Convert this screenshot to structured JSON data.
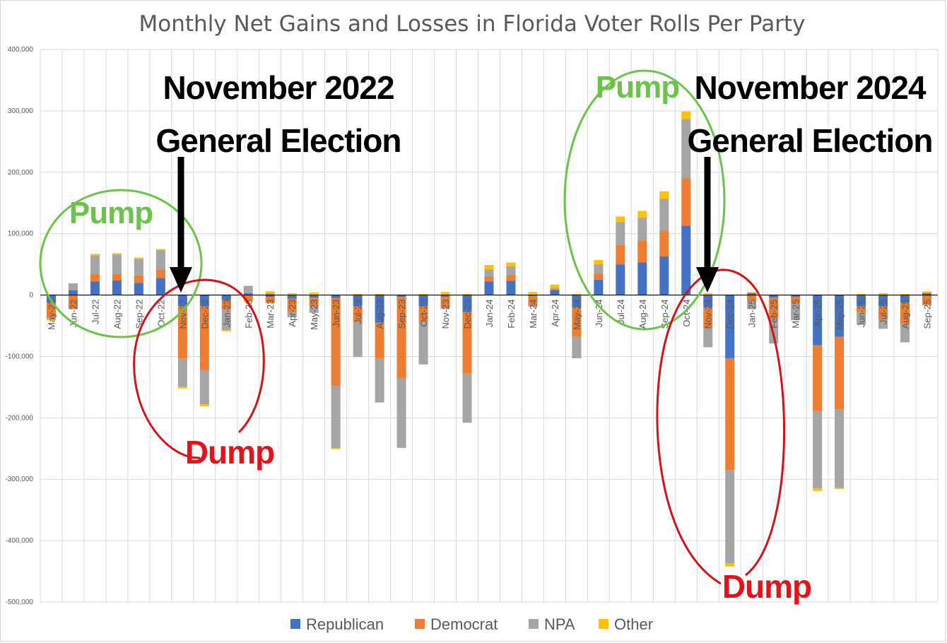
{
  "chart_data": {
    "type": "bar",
    "stacked": true,
    "title": "Monthly Net Gains and Losses in Florida Voter Rolls Per Party",
    "xlabel": "",
    "ylabel": "",
    "ylim": [
      -500000,
      400000
    ],
    "yticks": [
      400000,
      300000,
      200000,
      100000,
      0,
      -100000,
      -200000,
      -300000,
      -400000,
      -500000
    ],
    "ytick_labels": [
      "400,000",
      "300,000",
      "200,000",
      "100,000",
      "0",
      "-100,000",
      "-200,000",
      "-300,000",
      "-400,000",
      "-500,000"
    ],
    "grid": true,
    "legend_position": "bottom",
    "categories": [
      "May-22",
      "Jun-22",
      "Jul-22",
      "Aug-22",
      "Sep-22",
      "Oct-22",
      "Nov-22",
      "Dec-22",
      "Jan-23",
      "Feb-23",
      "Mar-23",
      "Apr-23",
      "May-23",
      "Jun-23",
      "Jul-23",
      "Aug-23",
      "Sep-23",
      "Oct-23",
      "Nov-23",
      "Dec-23",
      "Jan-24",
      "Feb-24",
      "Mar-24",
      "Apr-24",
      "May-24",
      "Jun-24",
      "Jul-24",
      "Aug-24",
      "Sep-24",
      "Oct-24",
      "Nov-24",
      "Dec-24",
      "Jan-25",
      "Feb-25",
      "Mar-25",
      "Apr-25",
      "May-25",
      "Jun-25",
      "Jul-25",
      "Aug-25",
      "Sep-25"
    ],
    "series": [
      {
        "name": "Republican",
        "color": "#4472c4",
        "values": [
          -12000,
          8000,
          22000,
          24000,
          20000,
          28000,
          -18000,
          -18000,
          -8000,
          3000,
          -3000,
          -6000,
          -4000,
          -5000,
          -18000,
          -45000,
          -3000,
          -18000,
          -3000,
          -28000,
          22000,
          23000,
          -2000,
          8000,
          -20000,
          25000,
          50000,
          53000,
          63000,
          113000,
          -20000,
          -103000,
          3000,
          -4000,
          -3000,
          -82000,
          -68000,
          -18000,
          -18000,
          -12000,
          3000
        ]
      },
      {
        "name": "Democrat",
        "color": "#ed7d31",
        "values": [
          -25000,
          -23000,
          12000,
          10000,
          12000,
          13000,
          -85000,
          -105000,
          -16000,
          -8000,
          -10000,
          -22000,
          -15000,
          -143000,
          -25000,
          -58000,
          -133000,
          -25000,
          -18000,
          -100000,
          8000,
          10000,
          -15000,
          2000,
          -48000,
          10000,
          32000,
          36000,
          42000,
          77000,
          -33000,
          -182000,
          -10000,
          -35000,
          -10000,
          -107000,
          -118000,
          -10000,
          -22000,
          -35000,
          -15000
        ]
      },
      {
        "name": "NPA",
        "color": "#a5a5a5",
        "values": [
          -2000,
          11000,
          30000,
          32000,
          27000,
          32000,
          -46000,
          -55000,
          -33000,
          12000,
          3000,
          -8000,
          -10000,
          -101000,
          -58000,
          -72000,
          -113000,
          -70000,
          -2000,
          -80000,
          12000,
          14000,
          -2000,
          2000,
          -35000,
          15000,
          37000,
          37000,
          52000,
          97000,
          -32000,
          -152000,
          -13000,
          -40000,
          -28000,
          -126000,
          -128000,
          -20000,
          -15000,
          -30000,
          -2000
        ]
      },
      {
        "name": "Other",
        "color": "#ffc000",
        "values": [
          -2000,
          0,
          3000,
          2000,
          2000,
          2000,
          -3000,
          -3000,
          -2000,
          -3000,
          3000,
          3000,
          4000,
          -2000,
          2000,
          2000,
          0,
          2000,
          5000,
          2000,
          7000,
          6000,
          5000,
          5000,
          2000,
          7000,
          9000,
          11000,
          12000,
          12000,
          3000,
          -5000,
          2000,
          0,
          0,
          -4000,
          -2000,
          2000,
          3000,
          2000,
          3000
        ]
      }
    ],
    "annotations": [
      {
        "text": "November 2022",
        "color": "#000000"
      },
      {
        "text": "General Election",
        "color": "#000000"
      },
      {
        "text": "November 2024",
        "color": "#000000"
      },
      {
        "text": "General Election",
        "color": "#000000"
      },
      {
        "text": "Pump",
        "color": "#6cc24a"
      },
      {
        "text": "Pump",
        "color": "#6cc24a"
      },
      {
        "text": "Dump",
        "color": "#e0141b"
      },
      {
        "text": "Dump",
        "color": "#e0141b"
      }
    ]
  }
}
